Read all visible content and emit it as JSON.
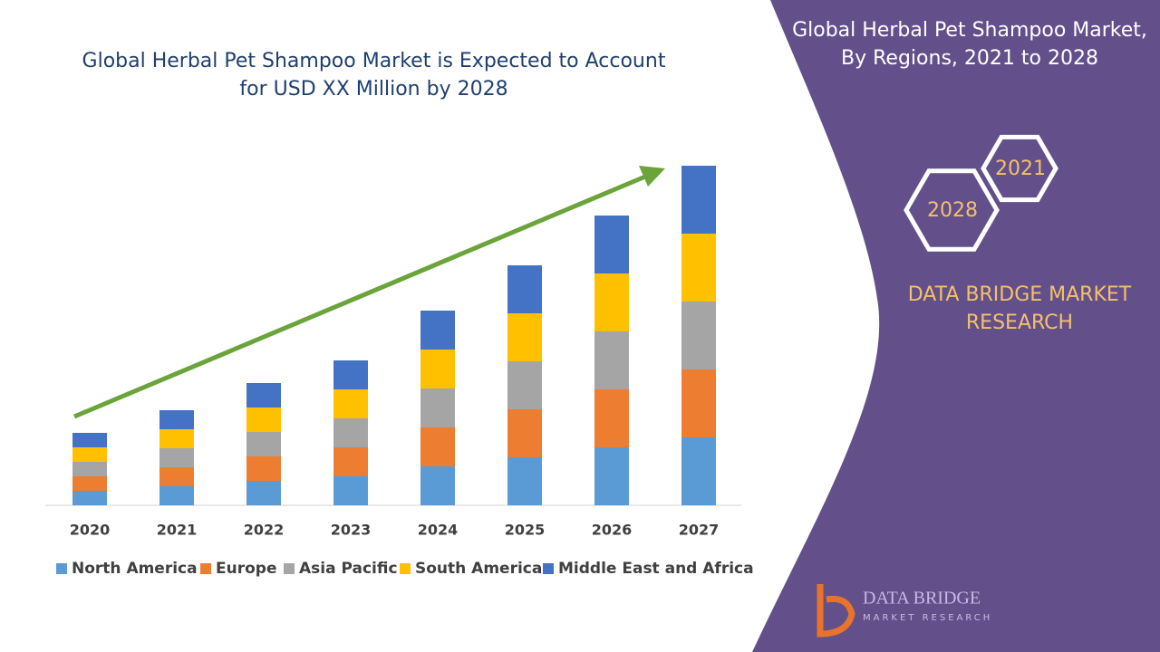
{
  "chart_data": {
    "type": "stacked_bar",
    "title": "Global Herbal Pet Shampoo Market is Expected to Account for USD XX Million by 2028",
    "categories": [
      "2020",
      "2021",
      "2022",
      "2023",
      "2024",
      "2025",
      "2026",
      "2027"
    ],
    "series": [
      {
        "name": "North America",
        "color": "#5b9bd5",
        "values": [
          16,
          21,
          27,
          32,
          43,
          53,
          64,
          75
        ]
      },
      {
        "name": "Europe",
        "color": "#ed7d31",
        "values": [
          16,
          21,
          27,
          32,
          43,
          53,
          64,
          75
        ]
      },
      {
        "name": "Asia Pacific",
        "color": "#a5a5a5",
        "values": [
          16,
          21,
          27,
          32,
          43,
          53,
          64,
          75
        ]
      },
      {
        "name": "South America",
        "color": "#ffc000",
        "values": [
          16,
          21,
          27,
          32,
          43,
          53,
          64,
          75
        ]
      },
      {
        "name": "Middle East and Africa",
        "color": "#4472c4",
        "values": [
          16,
          21,
          27,
          32,
          43,
          53,
          64,
          75
        ]
      }
    ],
    "ylim": [
      0,
      400
    ]
  },
  "sidebar": {
    "title": "Global Herbal Pet Shampoo Market, By Regions, 2021 to 2028",
    "hex_years": [
      "2021",
      "2028"
    ],
    "brand": "DATA BRIDGE MARKET RESEARCH",
    "logo_name": "DATA BRIDGE",
    "logo_sub": "MARKET RESEARCH"
  }
}
